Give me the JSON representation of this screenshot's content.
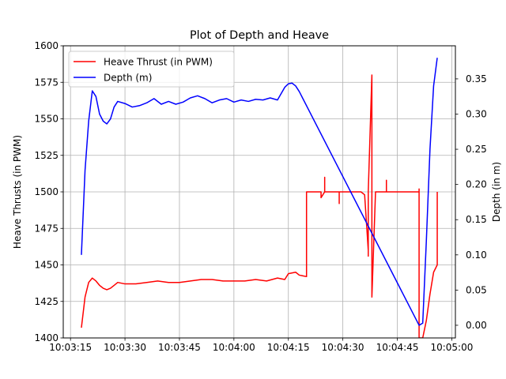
{
  "chart_data": {
    "type": "line",
    "title": "Plot of Depth and Heave",
    "xlabel": "",
    "ylabel_left": "Heave Thrusts (in PWM)",
    "ylabel_right": "Depth (in m)",
    "x_unit": "time (HH:MM:SS)",
    "xlim": [
      "10:03:13",
      "10:05:01"
    ],
    "x_ticks": [
      "10:03:15",
      "10:03:30",
      "10:03:45",
      "10:04:00",
      "10:04:15",
      "10:04:30",
      "10:04:45",
      "10:05:00"
    ],
    "ylim_left": [
      1400,
      1600
    ],
    "y_ticks_left": [
      1400,
      1425,
      1450,
      1475,
      1500,
      1525,
      1550,
      1575,
      1600
    ],
    "ylim_right": [
      -0.018,
      0.397
    ],
    "y_ticks_right": [
      "0.00",
      "0.05",
      "0.10",
      "0.15",
      "0.20",
      "0.25",
      "0.30",
      "0.35"
    ],
    "grid": true,
    "legend": "top-left",
    "series": [
      {
        "name": "Heave Thrust (in PWM)",
        "color": "#ff0000",
        "axis": "left",
        "points": [
          [
            "10:03:18",
            1407
          ],
          [
            "10:03:19",
            1428
          ],
          [
            "10:03:20",
            1438
          ],
          [
            "10:03:21",
            1441
          ],
          [
            "10:03:22",
            1439
          ],
          [
            "10:03:23",
            1436
          ],
          [
            "10:03:24",
            1434
          ],
          [
            "10:03:25",
            1433
          ],
          [
            "10:03:26",
            1434
          ],
          [
            "10:03:27",
            1436
          ],
          [
            "10:03:28",
            1438
          ],
          [
            "10:03:30",
            1437
          ],
          [
            "10:03:33",
            1437
          ],
          [
            "10:03:36",
            1438
          ],
          [
            "10:03:39",
            1439
          ],
          [
            "10:03:42",
            1438
          ],
          [
            "10:03:45",
            1438
          ],
          [
            "10:03:48",
            1439
          ],
          [
            "10:03:51",
            1440
          ],
          [
            "10:03:54",
            1440
          ],
          [
            "10:03:57",
            1439
          ],
          [
            "10:04:00",
            1439
          ],
          [
            "10:04:03",
            1439
          ],
          [
            "10:04:06",
            1440
          ],
          [
            "10:04:09",
            1439
          ],
          [
            "10:04:12",
            1441
          ],
          [
            "10:04:14",
            1440
          ],
          [
            "10:04:15",
            1444
          ],
          [
            "10:04:17",
            1445
          ],
          [
            "10:04:18",
            1443
          ],
          [
            "10:04:20",
            1442
          ],
          [
            "10:04:20",
            1500
          ],
          [
            "10:04:24",
            1500
          ],
          [
            "10:04:24",
            1496
          ],
          [
            "10:04:25",
            1500
          ],
          [
            "10:04:25",
            1510
          ],
          [
            "10:04:25",
            1500
          ],
          [
            "10:04:29",
            1500
          ],
          [
            "10:04:29",
            1492
          ],
          [
            "10:04:29",
            1500
          ],
          [
            "10:04:35",
            1500
          ],
          [
            "10:04:36",
            1498
          ],
          [
            "10:04:37",
            1460
          ],
          [
            "10:04:37",
            1456
          ],
          [
            "10:04:37",
            1500
          ],
          [
            "10:04:38",
            1580
          ],
          [
            "10:04:38",
            1500
          ],
          [
            "10:04:38",
            1428
          ],
          [
            "10:04:39",
            1500
          ],
          [
            "10:04:42",
            1500
          ],
          [
            "10:04:42",
            1508
          ],
          [
            "10:04:42",
            1500
          ],
          [
            "10:04:51",
            1500
          ],
          [
            "10:04:51",
            1481
          ],
          [
            "10:04:51",
            1502
          ],
          [
            "10:04:51",
            1400
          ],
          [
            "10:04:52",
            1400
          ],
          [
            "10:04:53",
            1412
          ],
          [
            "10:04:54",
            1430
          ],
          [
            "10:04:55",
            1445
          ],
          [
            "10:04:56",
            1450
          ],
          [
            "10:04:56",
            1500
          ]
        ]
      },
      {
        "name": "Depth (m)",
        "color": "#0000ff",
        "axis": "right",
        "points": [
          [
            "10:03:18",
            0.1
          ],
          [
            "10:03:19",
            0.22
          ],
          [
            "10:03:20",
            0.29
          ],
          [
            "10:03:21",
            0.333
          ],
          [
            "10:03:22",
            0.325
          ],
          [
            "10:03:23",
            0.3
          ],
          [
            "10:03:24",
            0.29
          ],
          [
            "10:03:25",
            0.286
          ],
          [
            "10:03:26",
            0.293
          ],
          [
            "10:03:27",
            0.31
          ],
          [
            "10:03:28",
            0.318
          ],
          [
            "10:03:30",
            0.315
          ],
          [
            "10:03:32",
            0.31
          ],
          [
            "10:03:34",
            0.312
          ],
          [
            "10:03:36",
            0.316
          ],
          [
            "10:03:38",
            0.322
          ],
          [
            "10:03:40",
            0.314
          ],
          [
            "10:03:42",
            0.318
          ],
          [
            "10:03:44",
            0.314
          ],
          [
            "10:03:46",
            0.317
          ],
          [
            "10:03:48",
            0.323
          ],
          [
            "10:03:50",
            0.326
          ],
          [
            "10:03:52",
            0.322
          ],
          [
            "10:03:54",
            0.316
          ],
          [
            "10:03:56",
            0.32
          ],
          [
            "10:03:58",
            0.322
          ],
          [
            "10:04:00",
            0.317
          ],
          [
            "10:04:02",
            0.32
          ],
          [
            "10:04:04",
            0.318
          ],
          [
            "10:04:06",
            0.321
          ],
          [
            "10:04:08",
            0.32
          ],
          [
            "10:04:10",
            0.323
          ],
          [
            "10:04:12",
            0.32
          ],
          [
            "10:04:14",
            0.338
          ],
          [
            "10:04:15",
            0.343
          ],
          [
            "10:04:16",
            0.344
          ],
          [
            "10:04:17",
            0.34
          ],
          [
            "10:04:18",
            0.332
          ],
          [
            "10:04:51",
            0.0
          ],
          [
            "10:04:52",
            0.003
          ],
          [
            "10:04:53",
            0.12
          ],
          [
            "10:04:54",
            0.25
          ],
          [
            "10:04:55",
            0.34
          ],
          [
            "10:04:56",
            0.38
          ]
        ]
      }
    ]
  }
}
